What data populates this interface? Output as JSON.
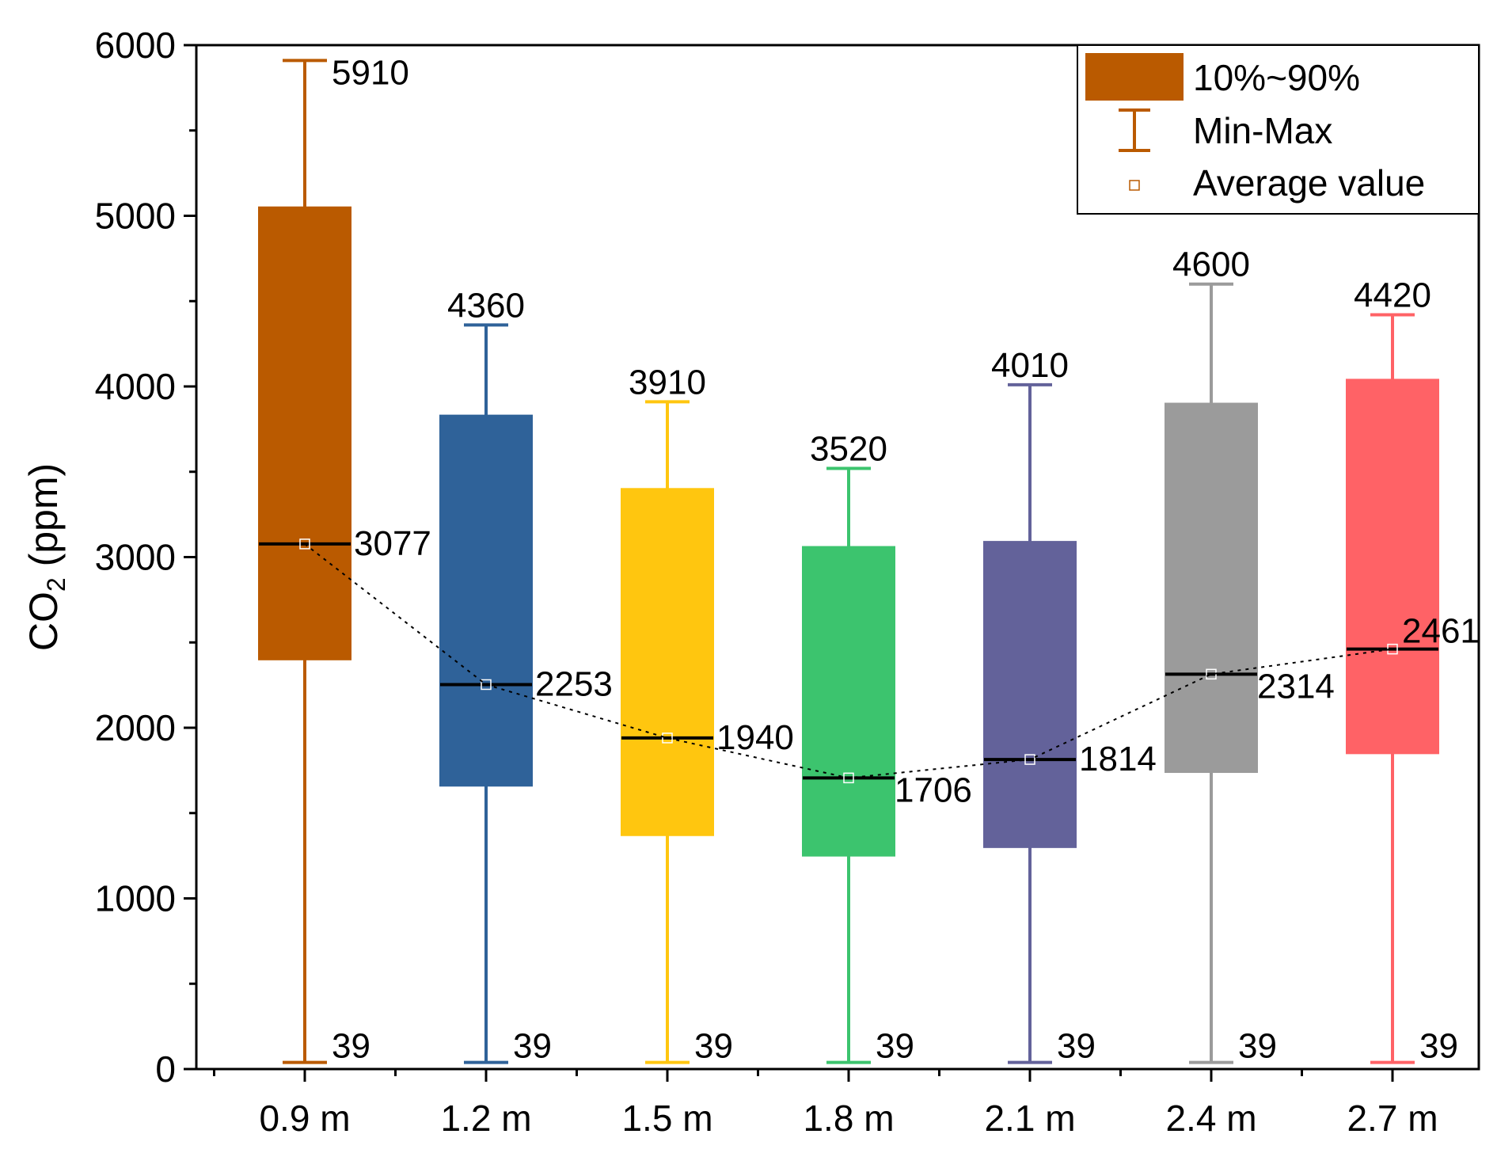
{
  "chart_data": {
    "type": "box",
    "title": "",
    "xlabel": "",
    "ylabel": "CO2 (ppm)",
    "ylabel_main": "CO",
    "ylabel_sub": "2",
    "ylabel_units": " (ppm)",
    "ylim": [
      0,
      6000
    ],
    "yticks": [
      0,
      1000,
      2000,
      3000,
      4000,
      5000,
      6000
    ],
    "categories": [
      "0.9 m",
      "1.2 m",
      "1.5 m",
      "1.8 m",
      "2.1 m",
      "2.4 m",
      "2.7 m"
    ],
    "colors": [
      "#BA5A00",
      "#2F6299",
      "#FFC60F",
      "#3CC46E",
      "#63629A",
      "#9B9B9B",
      "#FF6266"
    ],
    "series": [
      {
        "name": "0.9 m",
        "min": 39,
        "p10": 2400,
        "mean": 3077,
        "p90": 5050,
        "max": 5910
      },
      {
        "name": "1.2 m",
        "min": 39,
        "p10": 1660,
        "mean": 2253,
        "p90": 3830,
        "max": 4360
      },
      {
        "name": "1.5 m",
        "min": 39,
        "p10": 1370,
        "mean": 1940,
        "p90": 3400,
        "max": 3910
      },
      {
        "name": "1.8 m",
        "min": 39,
        "p10": 1250,
        "mean": 1706,
        "p90": 3060,
        "max": 3520
      },
      {
        "name": "2.1 m",
        "min": 39,
        "p10": 1300,
        "mean": 1814,
        "p90": 3090,
        "max": 4010
      },
      {
        "name": "2.4 m",
        "min": 39,
        "p10": 1740,
        "mean": 2314,
        "p90": 3900,
        "max": 4600
      },
      {
        "name": "2.7 m",
        "min": 39,
        "p10": 1850,
        "mean": 2461,
        "p90": 4040,
        "max": 4420
      }
    ],
    "data_labels": {
      "max": [
        "5910",
        "4360",
        "3910",
        "3520",
        "4010",
        "4600",
        "4420"
      ],
      "mean": [
        "3077",
        "2253",
        "1940",
        "1706",
        "1814",
        "2314",
        "2461"
      ],
      "min": [
        "39",
        "39",
        "39",
        "39",
        "39",
        "39",
        "39"
      ]
    },
    "legend": {
      "position": "top-right",
      "entries": [
        "10%~90%",
        "Min-Max",
        "Average value"
      ],
      "color": "#BA5A00"
    },
    "mean_line": "dotted"
  }
}
